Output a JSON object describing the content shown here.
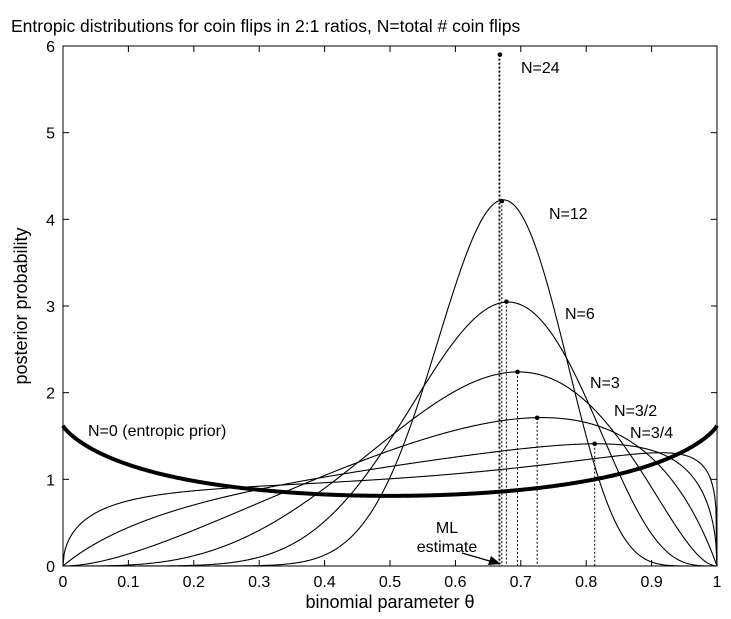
{
  "chart_data": {
    "type": "line",
    "title": "Entropic distributions for coin flips in 2:1 ratios, N=total # coin flips",
    "xlabel": "binomial parameter θ",
    "ylabel": "posterior probability",
    "xlim": [
      0,
      1
    ],
    "ylim": [
      0,
      6
    ],
    "xticks": [
      "0",
      "0.1",
      "0.2",
      "0.3",
      "0.4",
      "0.5",
      "0.6",
      "0.7",
      "0.8",
      "0.9",
      "1"
    ],
    "yticks": [
      "0",
      "1",
      "2",
      "3",
      "4",
      "5",
      "6"
    ],
    "grid": false,
    "ml_estimate": {
      "theta": 0.6667,
      "label_line1": "ML",
      "label_line2": "estimate"
    },
    "series": [
      {
        "name": "N=0 (entropic prior)",
        "N": 0,
        "label": "N=0 (entropic prior)"
      },
      {
        "name": "N=3/4",
        "N": 0.75,
        "label": "N=3/4",
        "peak": [
          0.813,
          1.41
        ]
      },
      {
        "name": "N=3/2",
        "N": 1.5,
        "label": "N=3/2",
        "peak": [
          0.725,
          1.71
        ]
      },
      {
        "name": "N=3",
        "N": 3,
        "label": "N=3",
        "peak": [
          0.695,
          2.24
        ]
      },
      {
        "name": "N=6",
        "N": 6,
        "label": "N=6",
        "peak": [
          0.678,
          3.05
        ]
      },
      {
        "name": "N=12",
        "N": 12,
        "label": "N=12",
        "peak": [
          0.671,
          4.21
        ]
      },
      {
        "name": "N=24",
        "N": 24,
        "label": "N=24",
        "peak": [
          0.668,
          5.9
        ]
      }
    ]
  }
}
